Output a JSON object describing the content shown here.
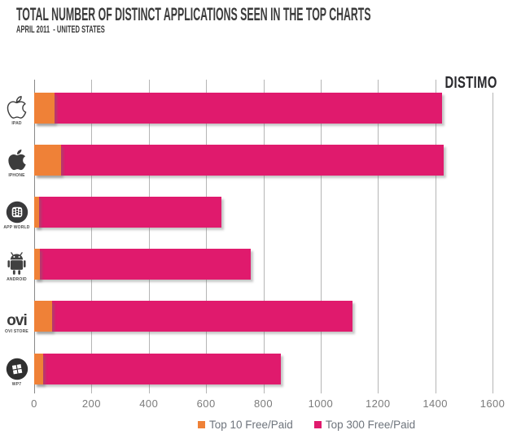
{
  "header": {
    "title": "TOTAL NUMBER OF DISTINCT APPLICATIONS SEEN IN THE TOP CHARTS",
    "subtitle": "APRIL 2011  - UNITED STATES",
    "brand": "DISTIMO"
  },
  "icons": {
    "ovi_wordmark": "ovi"
  },
  "colors": {
    "top10": "#EF8137",
    "top300": "#E01A6D",
    "title_text": "#3B3B3B",
    "axis_text": "#7B7B7B",
    "legend_text": "#6E747C",
    "gridline": "#B5B5B5",
    "zero_axis_line": "#888888",
    "icon_dark": "#3C3C3C"
  },
  "chart_data": {
    "type": "bar",
    "orientation": "horizontal",
    "title": "TOTAL NUMBER OF DISTINCT APPLICATIONS SEEN IN THE TOP CHARTS",
    "subtitle": "APRIL 2011  - UNITED STATES",
    "categories": [
      "IPAD",
      "IPHONE",
      "APP WORLD",
      "ANDROID",
      "OVI STORE",
      "WP7"
    ],
    "category_icons": [
      "apple-outline-icon",
      "apple-filled-icon",
      "blackberry-app-world-icon",
      "android-robot-icon",
      "ovi-wordmark-icon",
      "windows-phone-icon"
    ],
    "series": [
      {
        "name": "Top 10 Free/Paid",
        "color": "#EF8137",
        "values": [
          70,
          95,
          18,
          20,
          62,
          30
        ]
      },
      {
        "name": "Top 300 Free/Paid",
        "color": "#E01A6D",
        "values": [
          1425,
          1430,
          655,
          755,
          1110,
          860
        ]
      }
    ],
    "xlim": [
      0,
      1600
    ],
    "xticks": [
      0,
      200,
      400,
      600,
      800,
      1000,
      1200,
      1400,
      1600
    ],
    "grid": "vertical",
    "legend_position": "bottom",
    "bar_style": "overlay-from-zero"
  }
}
